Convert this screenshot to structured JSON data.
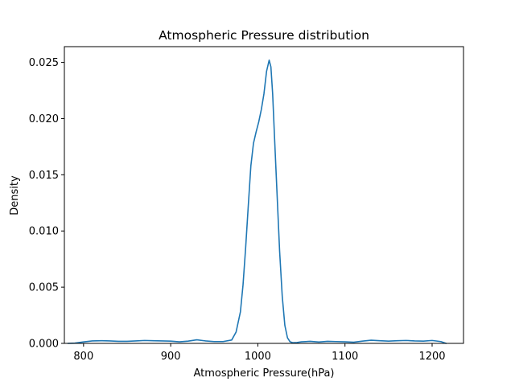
{
  "chart_data": {
    "type": "line",
    "title": "Atmospheric Pressure distribution",
    "xlabel": "Atmospheric Pressure(hPa)",
    "ylabel": "Density",
    "xlim": [
      778,
      1236
    ],
    "ylim": [
      0,
      0.0264
    ],
    "xticks": [
      800,
      900,
      1000,
      1100,
      1200
    ],
    "xtick_labels": [
      "800",
      "900",
      "1000",
      "1100",
      "1200"
    ],
    "yticks": [
      0.0,
      0.005,
      0.01,
      0.015,
      0.02,
      0.025
    ],
    "ytick_labels": [
      "0.000",
      "0.005",
      "0.010",
      "0.015",
      "0.020",
      "0.025"
    ],
    "grid": false,
    "series": [
      {
        "color": "#1f77b4",
        "x": [
          782,
          790,
          800,
          810,
          820,
          830,
          840,
          850,
          860,
          870,
          880,
          890,
          900,
          910,
          920,
          930,
          940,
          950,
          960,
          970,
          975,
          980,
          983,
          986,
          989,
          992,
          995,
          998,
          1001,
          1004,
          1007,
          1010,
          1013,
          1015,
          1017,
          1019,
          1022,
          1025,
          1028,
          1031,
          1034,
          1037,
          1040,
          1045,
          1050,
          1060,
          1070,
          1080,
          1090,
          1100,
          1110,
          1120,
          1130,
          1140,
          1150,
          1160,
          1170,
          1180,
          1190,
          1200,
          1210,
          1216
        ],
        "y": [
          0.0,
          2e-05,
          0.00013,
          0.00022,
          0.00024,
          0.00022,
          0.00018,
          0.00018,
          0.00022,
          0.00026,
          0.00024,
          0.00022,
          0.0002,
          0.00014,
          0.0002,
          0.00032,
          0.00022,
          0.00016,
          0.00016,
          0.0003,
          0.001,
          0.0028,
          0.0052,
          0.0085,
          0.0122,
          0.0158,
          0.0178,
          0.0188,
          0.0197,
          0.0208,
          0.0222,
          0.0242,
          0.0252,
          0.0246,
          0.0222,
          0.0186,
          0.0134,
          0.0082,
          0.0042,
          0.0016,
          0.0005,
          0.00014,
          6e-05,
          8e-05,
          0.00014,
          0.00018,
          0.00012,
          0.00018,
          0.00016,
          0.00014,
          0.0001,
          0.0002,
          0.00028,
          0.00024,
          0.0002,
          0.00024,
          0.00026,
          0.00022,
          0.0002,
          0.00026,
          0.00016,
          0.0
        ]
      }
    ]
  }
}
